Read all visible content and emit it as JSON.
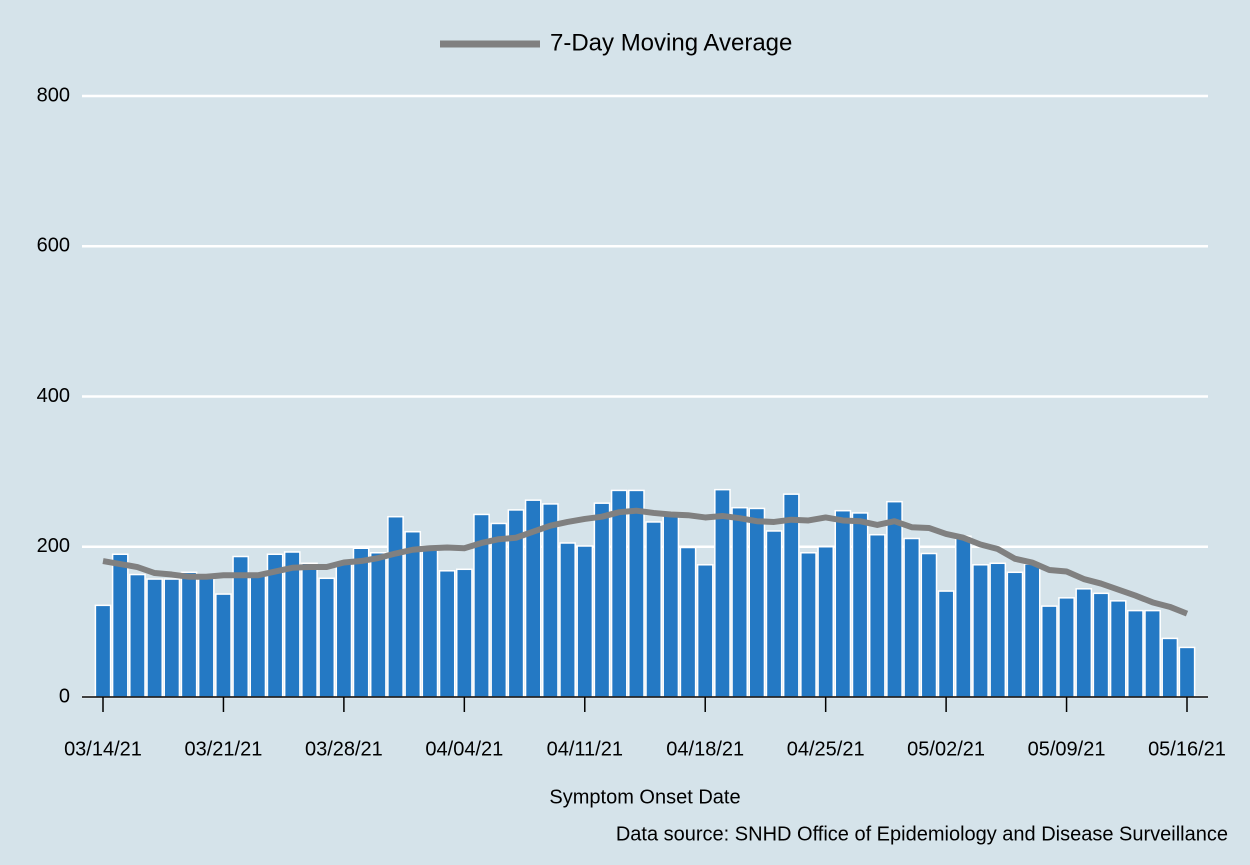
{
  "chart_data": {
    "type": "bar",
    "xlabel": "Symptom Onset Date",
    "note": "Data source: SNHD Office of Epidemiology and Disease Surveillance",
    "categories": [
      "03/14/21",
      null,
      null,
      null,
      null,
      null,
      null,
      "03/21/21",
      null,
      null,
      null,
      null,
      null,
      null,
      "03/28/21",
      null,
      null,
      null,
      null,
      null,
      null,
      "04/04/21",
      null,
      null,
      null,
      null,
      null,
      null,
      "04/11/21",
      null,
      null,
      null,
      null,
      null,
      null,
      "04/18/21",
      null,
      null,
      null,
      null,
      null,
      null,
      "04/25/21",
      null,
      null,
      null,
      null,
      null,
      null,
      "05/02/21",
      null,
      null,
      null,
      null,
      null,
      null,
      "05/09/21",
      null,
      null,
      null,
      null,
      null,
      null,
      "05/16/21"
    ],
    "series": [
      {
        "type": "bar",
        "color": "#2479c4",
        "values": [
          122,
          190,
          163,
          157,
          157,
          166,
          158,
          137,
          187,
          162,
          190,
          193,
          178,
          158,
          178,
          198,
          192,
          240,
          220,
          196,
          168,
          170,
          243,
          231,
          249,
          262,
          257,
          205,
          201,
          258,
          275,
          275,
          233,
          243,
          199,
          176,
          276,
          252,
          251,
          221,
          270,
          192,
          200,
          248,
          245,
          216,
          260,
          211,
          191,
          141,
          214,
          176,
          178,
          166,
          177,
          121,
          132,
          144,
          138,
          128,
          115,
          115,
          78,
          66
        ]
      },
      {
        "type": "line",
        "name": "7-Day Moving Average",
        "color": "#808080",
        "values": [
          181,
          177,
          173,
          165,
          163,
          160,
          160,
          162,
          162,
          162,
          167,
          172,
          173,
          173,
          179,
          181,
          185,
          191,
          196,
          198,
          199,
          198,
          205,
          210,
          212,
          220,
          228,
          233,
          237,
          240,
          246,
          248,
          245,
          243,
          242,
          239,
          241,
          238,
          234,
          233,
          236,
          235,
          239,
          235,
          234,
          229,
          234,
          226,
          225,
          217,
          212,
          203,
          197,
          184,
          179,
          169,
          167,
          157,
          151,
          143,
          135,
          126,
          120,
          111
        ]
      }
    ],
    "ylim": [
      0,
      800
    ],
    "yticks": [
      0,
      200,
      400,
      600,
      800
    ],
    "grid": true,
    "legend": "top"
  }
}
